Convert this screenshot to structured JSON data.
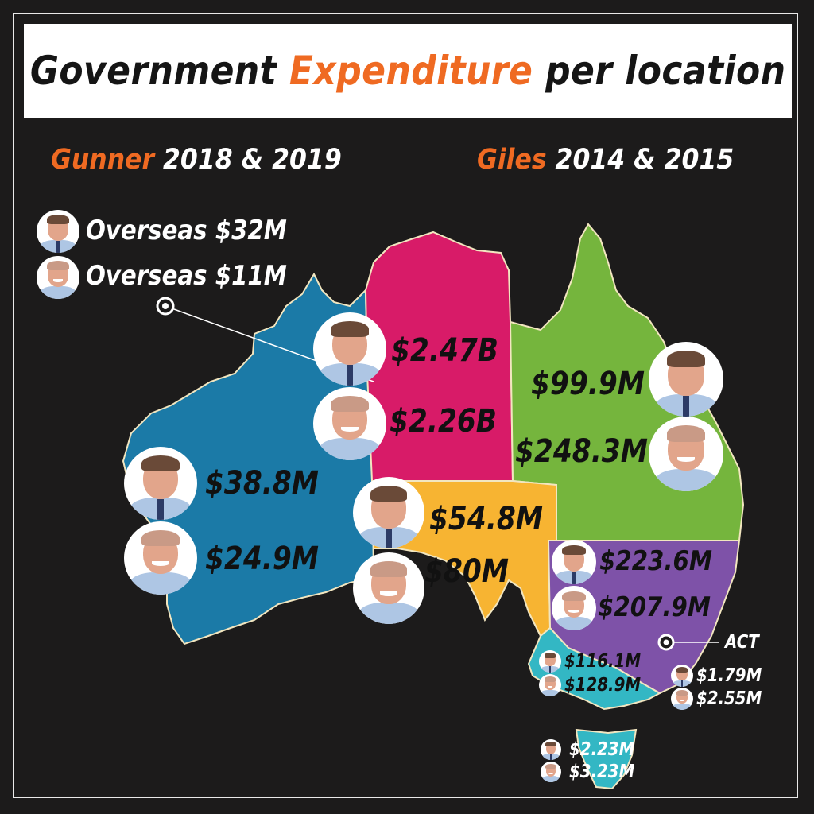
{
  "title": {
    "part1": "Government ",
    "accent": "Expenditure",
    "part2": " per location"
  },
  "left_heading": {
    "name": "Gunner",
    "years": " 2018 & 2019"
  },
  "right_heading": {
    "name": "Giles",
    "years": " 2014 & 2015"
  },
  "overseas": {
    "gunner": "Overseas $32M",
    "giles": "Overseas $11M"
  },
  "regions": {
    "wa": {
      "gunner": "$38.8M",
      "giles": "$24.9M",
      "color": "#1b7aa7"
    },
    "nt": {
      "gunner": "$2.47B",
      "giles": "$2.26B",
      "color": "#d81b68"
    },
    "qld": {
      "gunner": "$99.9M",
      "giles": "$248.3M",
      "color": "#75b53d"
    },
    "sa": {
      "gunner": "$54.8M",
      "giles": "$80M",
      "color": "#f7b432"
    },
    "nsw": {
      "gunner": "$223.6M",
      "giles": "$207.9M",
      "color": "#7e52a8"
    },
    "vic": {
      "gunner": "$116.1M",
      "giles": "$128.9M",
      "color": "#33b7c4"
    },
    "tas": {
      "gunner": "$2.23M",
      "giles": "$3.23M",
      "color": "#33b7c4"
    },
    "act": {
      "label": "ACT",
      "gunner": "$1.79M",
      "giles": "$2.55M"
    }
  },
  "colors": {
    "accent": "#ef6a22",
    "background": "#1c1b1b"
  },
  "legend_icons": {
    "gunner": "gunner-portrait-icon",
    "giles": "giles-portrait-icon"
  }
}
